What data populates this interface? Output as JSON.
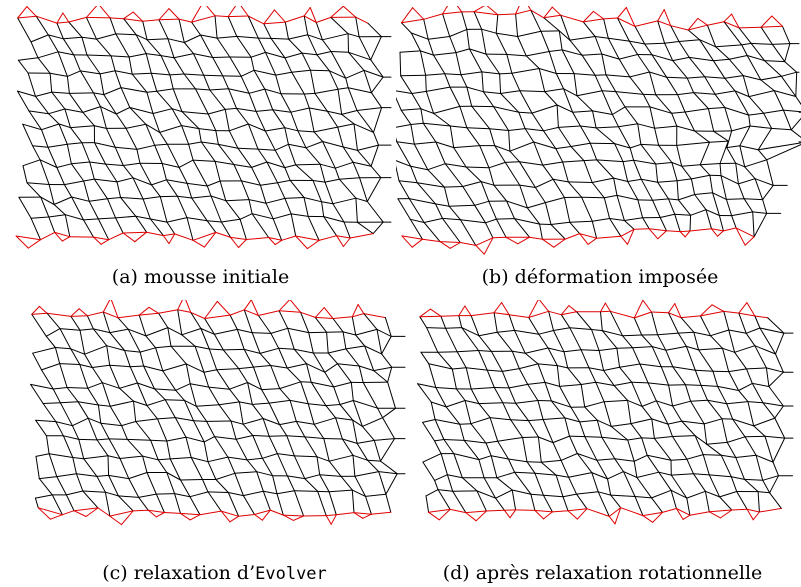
{
  "figure": {
    "panels": [
      {
        "id": "a",
        "kind": "initial",
        "caption": "(a) mousse initiale"
      },
      {
        "id": "b",
        "kind": "deformed",
        "caption": "(b) déformation imposée"
      },
      {
        "id": "c",
        "kind": "evolver",
        "caption_prefix": "(c) relaxation d’",
        "caption_code": "Evolver"
      },
      {
        "id": "d",
        "kind": "rotational",
        "caption": "(d) après relaxation rotationnelle"
      }
    ],
    "colors": {
      "cell_edges": "#000000",
      "boundary": "#e00000"
    }
  }
}
